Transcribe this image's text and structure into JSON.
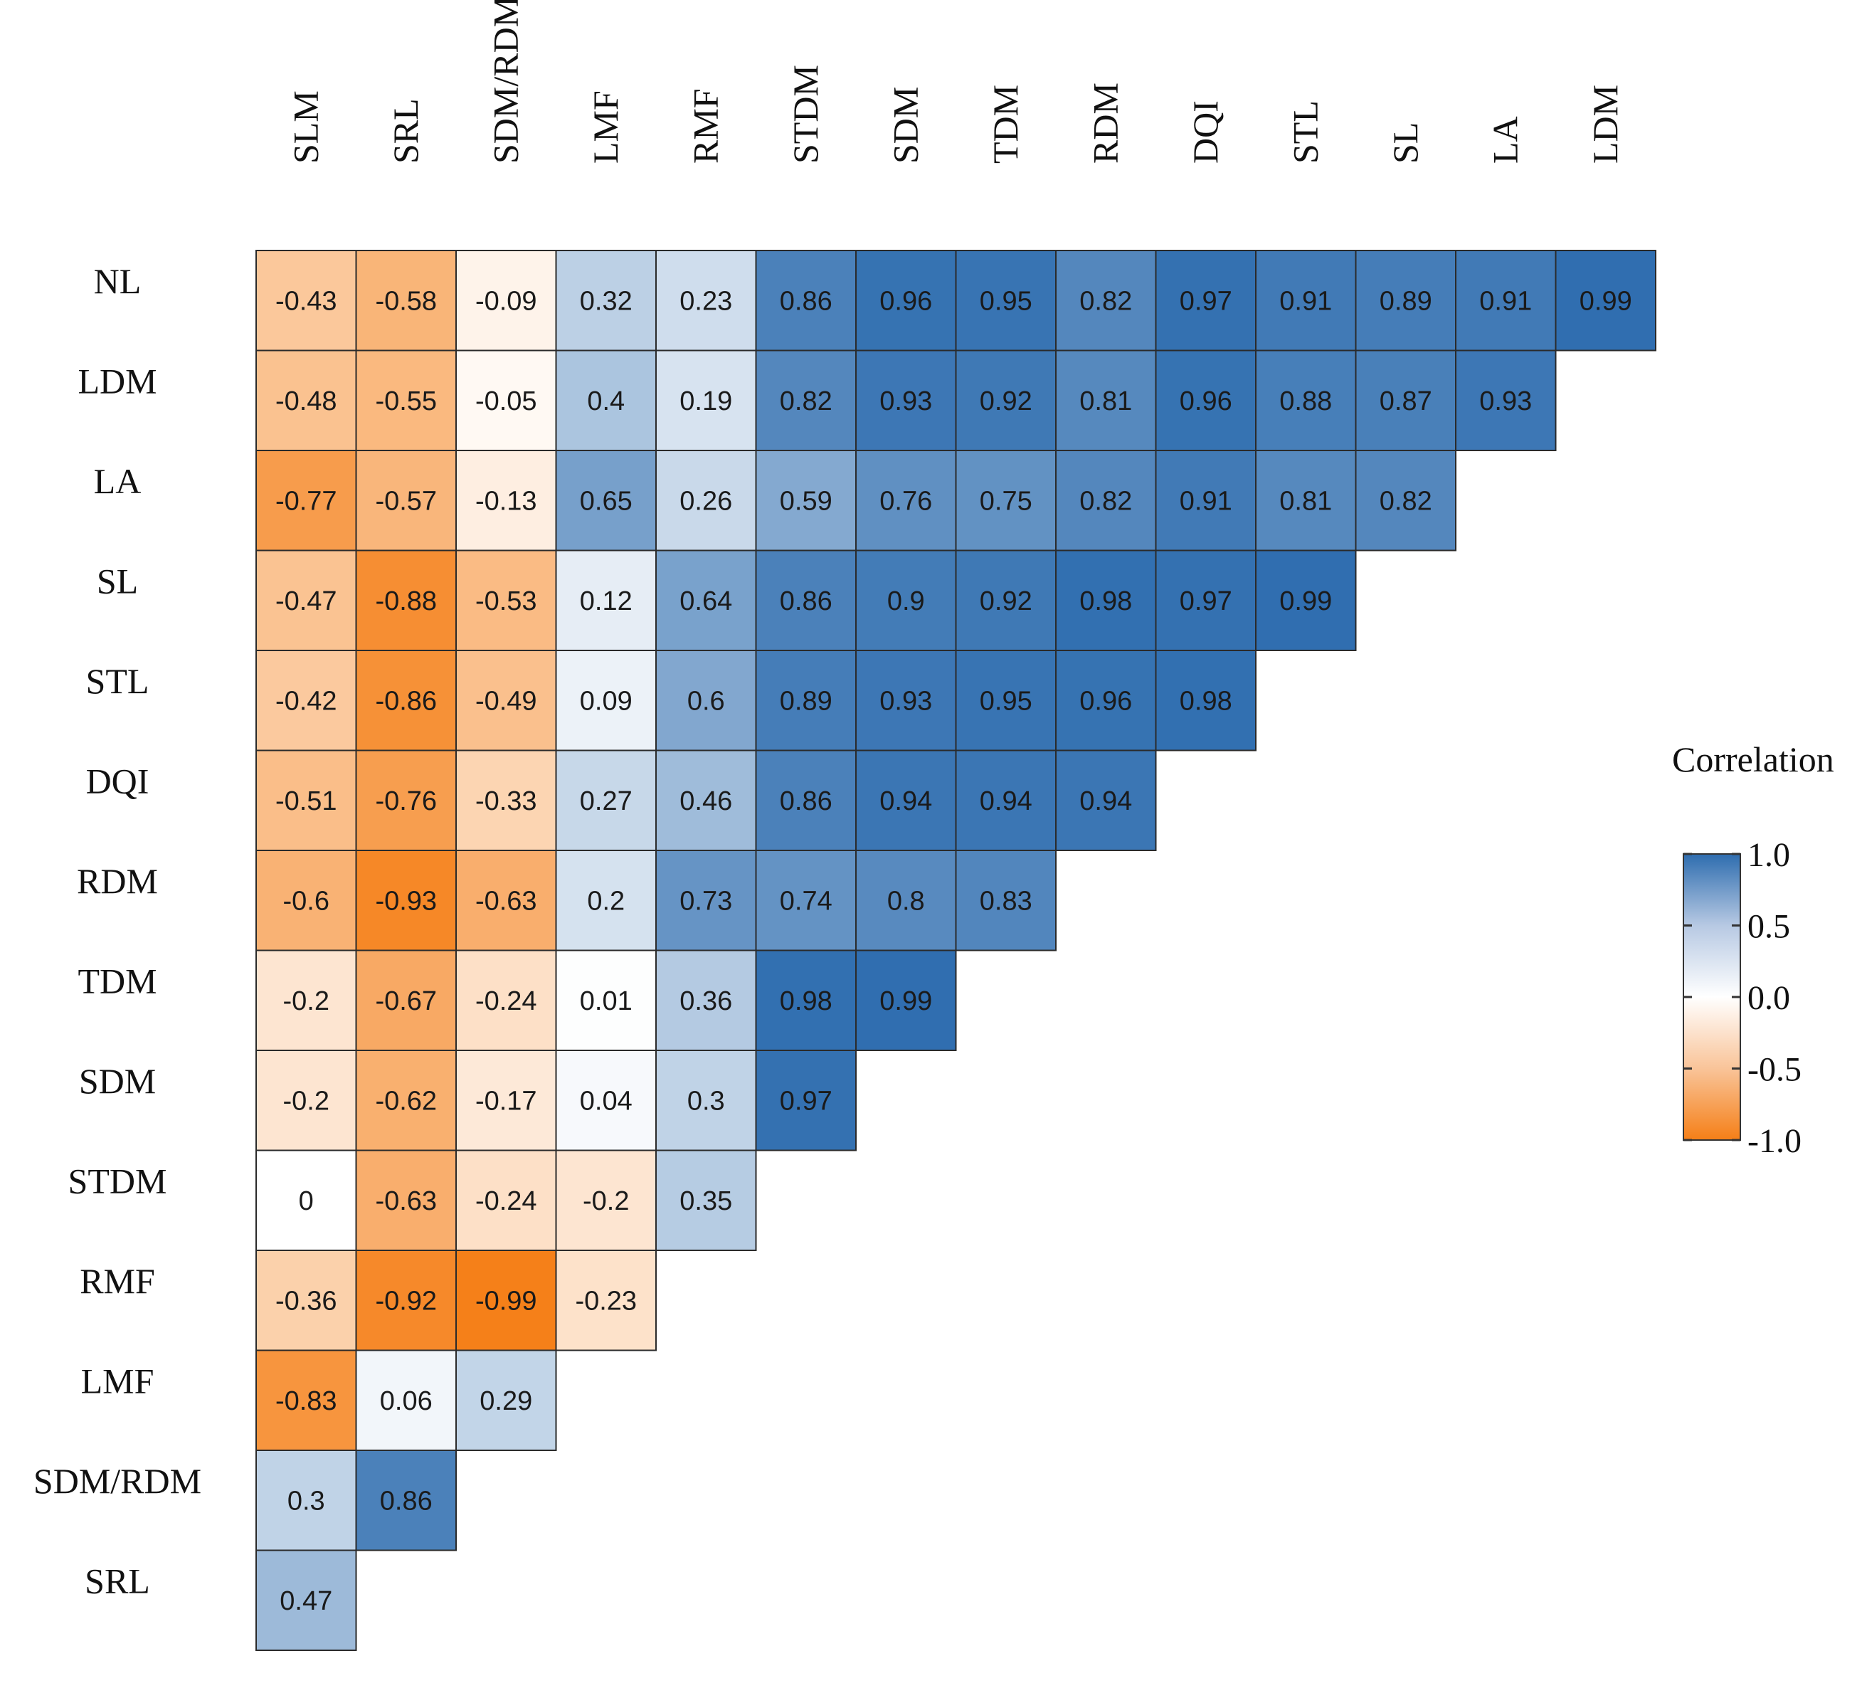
{
  "chart_data": {
    "type": "heatmap",
    "title": "",
    "xlabel": "",
    "ylabel": "",
    "columns": [
      "SLM",
      "SRL",
      "SDM/RDM",
      "LMF",
      "RMF",
      "STDM",
      "SDM",
      "TDM",
      "RDM",
      "DQI",
      "STL",
      "SL",
      "LA",
      "LDM"
    ],
    "rows": [
      "NL",
      "LDM",
      "LA",
      "SL",
      "STL",
      "DQI",
      "RDM",
      "TDM",
      "SDM",
      "STDM",
      "RMF",
      "LMF",
      "SDM/RDM",
      "SRL"
    ],
    "values": [
      [
        -0.43,
        -0.58,
        -0.09,
        0.32,
        0.23,
        0.86,
        0.96,
        0.95,
        0.82,
        0.97,
        0.91,
        0.89,
        0.91,
        0.99
      ],
      [
        -0.48,
        -0.55,
        -0.05,
        0.4,
        0.19,
        0.82,
        0.93,
        0.92,
        0.81,
        0.96,
        0.88,
        0.87,
        0.93
      ],
      [
        -0.77,
        -0.57,
        -0.13,
        0.65,
        0.26,
        0.59,
        0.76,
        0.75,
        0.82,
        0.91,
        0.81,
        0.82
      ],
      [
        -0.47,
        -0.88,
        -0.53,
        0.12,
        0.64,
        0.86,
        0.9,
        0.92,
        0.98,
        0.97,
        0.99
      ],
      [
        -0.42,
        -0.86,
        -0.49,
        0.09,
        0.6,
        0.89,
        0.93,
        0.95,
        0.96,
        0.98
      ],
      [
        -0.51,
        -0.76,
        -0.33,
        0.27,
        0.46,
        0.86,
        0.94,
        0.94,
        0.94
      ],
      [
        -0.6,
        -0.93,
        -0.63,
        0.2,
        0.73,
        0.74,
        0.8,
        0.83
      ],
      [
        -0.2,
        -0.67,
        -0.24,
        0.01,
        0.36,
        0.98,
        0.99
      ],
      [
        -0.2,
        -0.62,
        -0.17,
        0.04,
        0.3,
        0.97
      ],
      [
        0,
        -0.63,
        -0.24,
        -0.2,
        0.35
      ],
      [
        -0.36,
        -0.92,
        -0.99,
        -0.23
      ],
      [
        -0.83,
        0.06,
        0.29
      ],
      [
        0.3,
        0.86
      ],
      [
        0.47
      ]
    ],
    "legend": {
      "title": "Correlation",
      "ticks": [
        "1.0",
        "0.5",
        "0.0",
        "-0.5",
        "-1.0"
      ],
      "range": [
        -1,
        1
      ],
      "placement": "right"
    },
    "colors": {
      "positive": "#2e6daf",
      "neutral": "#ffffff",
      "negative": "#f57f17"
    }
  }
}
